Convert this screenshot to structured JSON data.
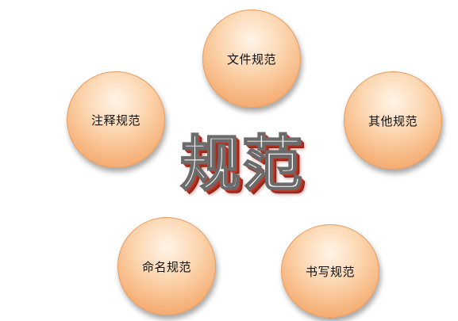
{
  "diagram": {
    "center_title": "规范",
    "nodes": {
      "file": "文件规范",
      "comment": "注释规范",
      "other": "其他规范",
      "naming": "命名规范",
      "writing": "书写规范"
    },
    "colors": {
      "node_fill": "#f6b47d",
      "node_highlight": "#fff4e8",
      "node_border": "#e89a5c",
      "title_shadow": "#c0392b",
      "title_stroke": "#6b6b6b"
    }
  }
}
